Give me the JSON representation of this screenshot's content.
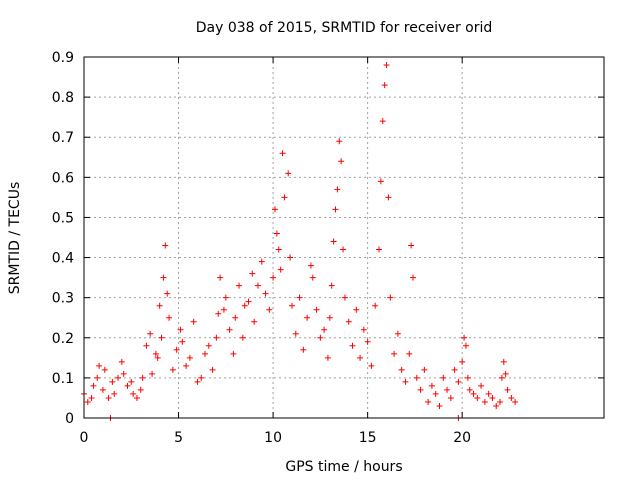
{
  "chart_data": {
    "type": "scatter",
    "title": "Day 038 of 2015, SRMTID for receiver orid",
    "xlabel": "GPS time / hours",
    "ylabel": "SRMTID / TECUs",
    "xlim": [
      0,
      27.5
    ],
    "ylim": [
      0,
      0.9
    ],
    "x_ticks": [
      0,
      5,
      10,
      15,
      20
    ],
    "x_tick_labels": [
      "0",
      "5",
      "10",
      "15",
      "20"
    ],
    "y_ticks": [
      0,
      0.1,
      0.2,
      0.3,
      0.4,
      0.5,
      0.6,
      0.7,
      0.8,
      0.9
    ],
    "y_tick_labels": [
      "0",
      "0.1",
      "0.2",
      "0.3",
      "0.4",
      "0.5",
      "0.6",
      "0.7",
      "0.8",
      "0.9"
    ],
    "grid": true,
    "marker": "+",
    "colors": {
      "series": "#ff0000",
      "grid": "#a0a0a0",
      "axis": "#000000"
    },
    "series": [
      {
        "name": "SRMTID",
        "x": [
          0.0,
          0.2,
          0.4,
          0.5,
          0.7,
          0.8,
          1.0,
          1.1,
          1.3,
          1.5,
          1.6,
          1.8,
          2.0,
          2.1,
          2.3,
          2.5,
          2.6,
          2.8,
          3.0,
          3.1,
          3.3,
          3.5,
          3.6,
          3.8,
          3.9,
          4.0,
          4.1,
          4.2,
          4.3,
          4.4,
          4.5,
          4.7,
          4.9,
          5.1,
          5.2,
          5.4,
          5.6,
          5.8,
          6.0,
          6.2,
          6.4,
          6.6,
          6.8,
          7.0,
          7.1,
          7.2,
          7.4,
          7.5,
          7.7,
          7.9,
          8.0,
          8.2,
          8.4,
          8.5,
          8.7,
          8.9,
          9.0,
          9.2,
          9.4,
          9.6,
          9.8,
          10.0,
          10.1,
          10.2,
          10.3,
          10.4,
          10.5,
          10.6,
          10.8,
          10.9,
          11.0,
          11.2,
          11.4,
          11.6,
          11.8,
          12.0,
          12.1,
          12.3,
          12.5,
          12.7,
          12.9,
          13.0,
          13.1,
          13.2,
          13.3,
          13.4,
          13.5,
          13.6,
          13.7,
          13.8,
          14.0,
          14.2,
          14.4,
          14.6,
          14.8,
          15.0,
          15.2,
          15.4,
          15.6,
          15.7,
          15.8,
          15.9,
          16.0,
          16.1,
          16.2,
          16.4,
          16.6,
          16.8,
          17.0,
          17.2,
          17.3,
          17.4,
          17.6,
          17.8,
          18.0,
          18.2,
          18.4,
          18.6,
          18.8,
          19.0,
          19.2,
          19.4,
          19.6,
          19.8,
          20.0,
          20.1,
          20.2,
          20.3,
          20.4,
          20.6,
          20.8,
          21.0,
          21.2,
          21.4,
          21.6,
          21.8,
          22.0,
          22.1,
          22.2,
          22.3,
          22.4,
          22.6,
          22.8,
          1.4,
          19.8
        ],
        "y": [
          0.06,
          0.04,
          0.05,
          0.08,
          0.1,
          0.13,
          0.07,
          0.12,
          0.05,
          0.09,
          0.06,
          0.1,
          0.14,
          0.11,
          0.08,
          0.09,
          0.06,
          0.05,
          0.07,
          0.1,
          0.18,
          0.21,
          0.11,
          0.16,
          0.15,
          0.28,
          0.2,
          0.35,
          0.43,
          0.31,
          0.25,
          0.12,
          0.17,
          0.22,
          0.19,
          0.13,
          0.15,
          0.24,
          0.09,
          0.1,
          0.16,
          0.18,
          0.12,
          0.2,
          0.26,
          0.35,
          0.27,
          0.3,
          0.22,
          0.16,
          0.25,
          0.33,
          0.2,
          0.28,
          0.29,
          0.36,
          0.24,
          0.33,
          0.39,
          0.31,
          0.27,
          0.35,
          0.52,
          0.46,
          0.42,
          0.37,
          0.66,
          0.55,
          0.61,
          0.4,
          0.28,
          0.21,
          0.3,
          0.17,
          0.25,
          0.38,
          0.35,
          0.27,
          0.2,
          0.22,
          0.15,
          0.25,
          0.33,
          0.44,
          0.52,
          0.57,
          0.69,
          0.64,
          0.42,
          0.3,
          0.24,
          0.18,
          0.27,
          0.15,
          0.22,
          0.19,
          0.13,
          0.28,
          0.42,
          0.59,
          0.74,
          0.83,
          0.88,
          0.55,
          0.3,
          0.16,
          0.21,
          0.12,
          0.09,
          0.16,
          0.43,
          0.35,
          0.1,
          0.07,
          0.12,
          0.04,
          0.08,
          0.06,
          0.03,
          0.1,
          0.07,
          0.05,
          0.12,
          0.09,
          0.14,
          0.2,
          0.18,
          0.1,
          0.07,
          0.06,
          0.05,
          0.08,
          0.04,
          0.06,
          0.05,
          0.03,
          0.04,
          0.1,
          0.14,
          0.11,
          0.07,
          0.05,
          0.04,
          0.0,
          0.0
        ]
      }
    ]
  }
}
